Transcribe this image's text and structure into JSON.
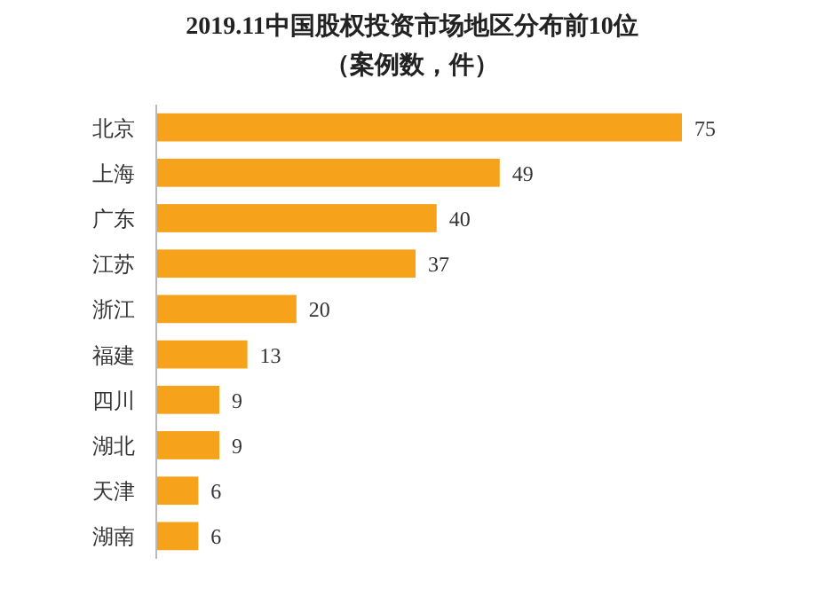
{
  "chart_data": {
    "type": "bar",
    "orientation": "horizontal",
    "title": "2019.11中国股权投资市场地区分布前10位",
    "subtitle": "（案例数，件）",
    "categories": [
      "北京",
      "上海",
      "广东",
      "江苏",
      "浙江",
      "福建",
      "四川",
      "湖北",
      "天津",
      "湖南"
    ],
    "values": [
      75,
      49,
      40,
      37,
      20,
      13,
      9,
      9,
      6,
      6
    ],
    "color": "#f7a21b",
    "data_labels": true
  }
}
